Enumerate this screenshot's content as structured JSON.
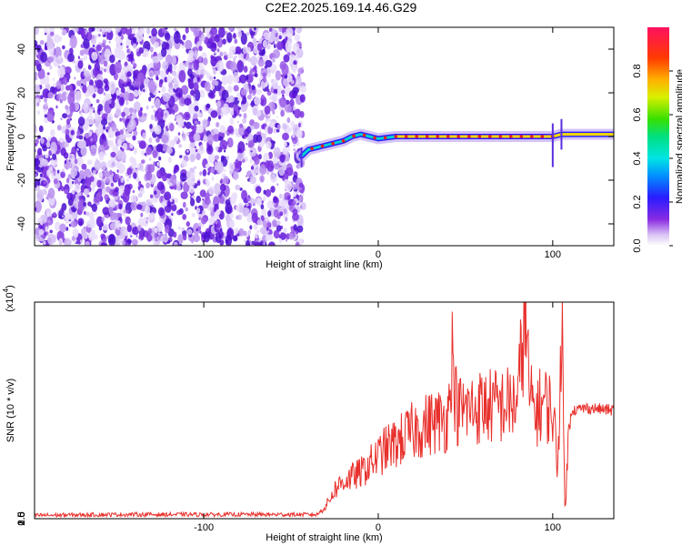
{
  "title": "C2E2.2025.169.14.46.G29",
  "chart_data": [
    {
      "type": "heatmap",
      "xlabel": "Height of straight line (km)",
      "ylabel": "Frequency (Hz)",
      "xlim": [
        -197,
        135
      ],
      "ylim": [
        -50,
        50
      ],
      "xticks": [
        -100,
        0,
        100
      ],
      "yticks": [
        -40,
        -20,
        0,
        20,
        40
      ],
      "noise_region_x": [
        -197,
        -43
      ],
      "signal_track": {
        "x": [
          -44,
          -40,
          -35,
          -30,
          -25,
          -20,
          -15,
          -10,
          -5,
          0,
          10,
          20,
          40,
          60,
          80,
          90,
          100,
          105,
          120,
          135
        ],
        "freq": [
          -9,
          -6,
          -5,
          -4,
          -3,
          -2,
          0,
          1,
          0,
          -1,
          0,
          0,
          0,
          0,
          0,
          0,
          0,
          1,
          1,
          1
        ]
      },
      "colorbar": {
        "label": "Normalized spectral amplitude",
        "range": [
          0,
          1
        ],
        "ticks": [
          0.0,
          0.2,
          0.4,
          0.6,
          0.8
        ]
      }
    },
    {
      "type": "line",
      "xlabel": "Height of straight line (km)",
      "ylabel": "SNR (10 * v/v)",
      "ymultiplier_label": "(x10",
      "ymultiplier_exp": "4",
      "ymultiplier_close": ")",
      "xlim": [
        -197,
        135
      ],
      "ylim": [
        0,
        26000
      ],
      "xticks": [
        -100,
        0,
        100
      ],
      "yticks": [
        0.5,
        1.0,
        1.5,
        2.0,
        2.5
      ],
      "series": [
        {
          "color": "#e8302c",
          "x": [
            -197,
            -150,
            -100,
            -60,
            -35,
            -30,
            -25,
            -20,
            -15,
            -10,
            -5,
            0,
            5,
            10,
            20,
            30,
            40,
            42,
            45,
            50,
            60,
            70,
            80,
            84,
            87,
            90,
            95,
            100,
            103,
            105,
            107,
            110,
            120,
            135
          ],
          "y": [
            400,
            500,
            500,
            500,
            500,
            1500,
            3500,
            4500,
            5000,
            5500,
            6500,
            7500,
            8500,
            9000,
            10500,
            11500,
            12000,
            20500,
            13000,
            13000,
            13500,
            13500,
            14000,
            25000,
            14000,
            13000,
            14000,
            13000,
            6000,
            25500,
            1000,
            13000,
            13300,
            13000
          ]
        }
      ]
    }
  ]
}
